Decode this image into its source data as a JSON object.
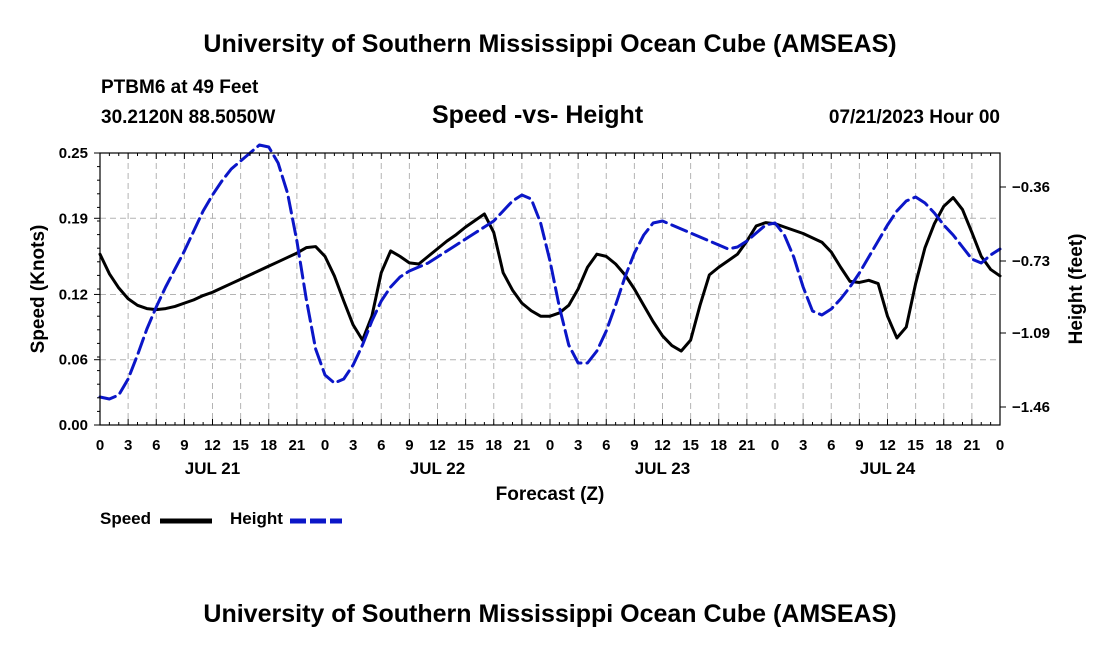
{
  "header": {
    "title": "University of Southern Mississippi Ocean Cube (AMSEAS)",
    "station": "PTBM6 at 49 Feet",
    "coords": "30.2120N  88.5050W",
    "chart_title": "Speed -vs- Height",
    "date": "07/21/2023 Hour 00"
  },
  "footer": {
    "title": "University of Southern Mississippi Ocean Cube (AMSEAS)"
  },
  "legend": {
    "speed_label": "Speed",
    "height_label": "Height"
  },
  "colors": {
    "speed": "#000000",
    "height": "#0b16c8",
    "grid": "#b4b4b4"
  },
  "chart_data": {
    "type": "line",
    "title": "Speed -vs- Height",
    "xlabel": "Forecast (Z)",
    "ylabel": "Speed (Knots)",
    "y2label": "Height (feet)",
    "x_range_hours": [
      0,
      96
    ],
    "ylim": [
      0,
      0.25
    ],
    "y2lim": [
      -1.55,
      -0.19
    ],
    "y_ticks": [
      0.0,
      0.06,
      0.12,
      0.19,
      0.25
    ],
    "y_tick_labels": [
      "0.00",
      "0.06",
      "0.12",
      "0.19",
      "0.25"
    ],
    "y2_ticks": [
      -1.46,
      -1.09,
      -0.73,
      -0.36
    ],
    "y2_tick_labels": [
      "−1.46",
      "−1.09",
      "−0.73",
      "−0.36"
    ],
    "x_tick_hours": [
      0,
      3,
      6,
      9,
      12,
      15,
      18,
      21,
      24,
      27,
      30,
      33,
      36,
      39,
      42,
      45,
      48,
      51,
      54,
      57,
      60,
      63,
      66,
      69,
      72,
      75,
      78,
      81,
      84,
      87,
      90,
      93,
      96
    ],
    "x_tick_labels": [
      "0",
      "3",
      "6",
      "9",
      "12",
      "15",
      "18",
      "21",
      "0",
      "3",
      "6",
      "9",
      "12",
      "15",
      "18",
      "21",
      "0",
      "3",
      "6",
      "9",
      "12",
      "15",
      "18",
      "21",
      "0",
      "3",
      "6",
      "9",
      "12",
      "15",
      "18",
      "21",
      "0"
    ],
    "day_labels": [
      {
        "hour": 12,
        "label": "JUL 21"
      },
      {
        "hour": 36,
        "label": "JUL 22"
      },
      {
        "hour": 60,
        "label": "JUL 23"
      },
      {
        "hour": 84,
        "label": "JUL 24"
      }
    ],
    "series": [
      {
        "name": "Speed",
        "axis": "left",
        "style": "solid",
        "x": [
          0,
          1,
          2,
          3,
          4,
          5,
          6,
          7,
          8,
          9,
          10,
          11,
          12,
          13,
          14,
          15,
          16,
          17,
          18,
          19,
          20,
          21,
          22,
          23,
          24,
          25,
          26,
          27,
          28,
          29,
          30,
          31,
          32,
          33,
          34,
          35,
          36,
          37,
          38,
          39,
          40,
          41,
          42,
          43,
          44,
          45,
          46,
          47,
          48,
          49,
          50,
          51,
          52,
          53,
          54,
          55,
          56,
          57,
          58,
          59,
          60,
          61,
          62,
          63,
          64,
          65,
          66,
          67,
          68,
          69,
          70,
          71,
          72,
          73,
          74,
          75,
          76,
          77,
          78,
          79,
          80,
          81,
          82,
          83,
          84,
          85,
          86,
          87,
          88,
          89,
          90,
          91,
          92,
          93,
          94,
          95,
          96
        ],
        "values": [
          0.157,
          0.139,
          0.126,
          0.116,
          0.11,
          0.107,
          0.106,
          0.107,
          0.109,
          0.112,
          0.115,
          0.119,
          0.122,
          0.126,
          0.13,
          0.134,
          0.138,
          0.142,
          0.146,
          0.15,
          0.154,
          0.158,
          0.163,
          0.164,
          0.155,
          0.137,
          0.114,
          0.092,
          0.078,
          0.1,
          0.14,
          0.16,
          0.155,
          0.149,
          0.148,
          0.155,
          0.162,
          0.169,
          0.175,
          0.182,
          0.188,
          0.194,
          0.177,
          0.14,
          0.124,
          0.112,
          0.105,
          0.1,
          0.1,
          0.103,
          0.11,
          0.125,
          0.145,
          0.157,
          0.155,
          0.148,
          0.138,
          0.125,
          0.11,
          0.095,
          0.082,
          0.073,
          0.068,
          0.078,
          0.11,
          0.138,
          0.145,
          0.151,
          0.157,
          0.169,
          0.183,
          0.186,
          0.185,
          0.182,
          0.179,
          0.176,
          0.172,
          0.168,
          0.159,
          0.145,
          0.132,
          0.131,
          0.133,
          0.13,
          0.1,
          0.08,
          0.09,
          0.13,
          0.163,
          0.185,
          0.201,
          0.209,
          0.198,
          0.177,
          0.155,
          0.143,
          0.137
        ],
        "units": "knots"
      },
      {
        "name": "Height",
        "axis": "right",
        "style": "dashed",
        "x": [
          0,
          1,
          2,
          3,
          4,
          5,
          6,
          7,
          8,
          9,
          10,
          11,
          12,
          13,
          14,
          15,
          16,
          17,
          18,
          19,
          20,
          21,
          22,
          23,
          24,
          25,
          26,
          27,
          28,
          29,
          30,
          31,
          32,
          33,
          34,
          35,
          36,
          37,
          38,
          39,
          40,
          41,
          42,
          43,
          44,
          45,
          46,
          47,
          48,
          49,
          50,
          51,
          52,
          53,
          54,
          55,
          56,
          57,
          58,
          59,
          60,
          61,
          62,
          63,
          64,
          65,
          66,
          67,
          68,
          69,
          70,
          71,
          72,
          73,
          74,
          75,
          76,
          77,
          78,
          79,
          80,
          81,
          82,
          83,
          84,
          85,
          86,
          87,
          88,
          89,
          90,
          91,
          92,
          93,
          94,
          95,
          96
        ],
        "values": [
          -1.41,
          -1.42,
          -1.4,
          -1.32,
          -1.2,
          -1.07,
          -0.96,
          -0.86,
          -0.77,
          -0.68,
          -0.58,
          -0.48,
          -0.4,
          -0.33,
          -0.27,
          -0.23,
          -0.19,
          -0.15,
          -0.16,
          -0.24,
          -0.39,
          -0.63,
          -0.92,
          -1.17,
          -1.3,
          -1.34,
          -1.32,
          -1.25,
          -1.15,
          -1.03,
          -0.93,
          -0.86,
          -0.81,
          -0.78,
          -0.76,
          -0.74,
          -0.71,
          -0.68,
          -0.65,
          -0.62,
          -0.59,
          -0.56,
          -0.53,
          -0.48,
          -0.43,
          -0.4,
          -0.42,
          -0.54,
          -0.73,
          -0.96,
          -1.15,
          -1.24,
          -1.24,
          -1.18,
          -1.08,
          -0.95,
          -0.81,
          -0.69,
          -0.6,
          -0.54,
          -0.53,
          -0.55,
          -0.57,
          -0.59,
          -0.61,
          -0.63,
          -0.65,
          -0.67,
          -0.66,
          -0.63,
          -0.59,
          -0.55,
          -0.54,
          -0.6,
          -0.71,
          -0.86,
          -0.98,
          -1.0,
          -0.97,
          -0.92,
          -0.86,
          -0.79,
          -0.71,
          -0.63,
          -0.55,
          -0.48,
          -0.43,
          -0.41,
          -0.44,
          -0.49,
          -0.55,
          -0.6,
          -0.66,
          -0.72,
          -0.74,
          -0.7,
          -0.67
        ],
        "units": "feet"
      }
    ]
  }
}
